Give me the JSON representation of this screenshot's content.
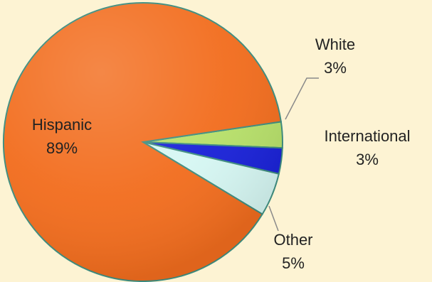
{
  "chart_data": {
    "type": "pie",
    "title": "",
    "slices": [
      {
        "label": "Hispanic",
        "value": 89,
        "value_label": "89%",
        "color": "#f26d1e"
      },
      {
        "label": "White",
        "value": 3,
        "value_label": "3%",
        "color": "#b7e06a"
      },
      {
        "label": "International",
        "value": 3,
        "value_label": "3%",
        "color": "#1a22d8"
      },
      {
        "label": "Other",
        "value": 5,
        "value_label": "5%",
        "color": "#d6f7f3"
      }
    ],
    "legend": "none",
    "slice_border_color": "#3f8d7f",
    "background_color": "#fdf3d3"
  }
}
